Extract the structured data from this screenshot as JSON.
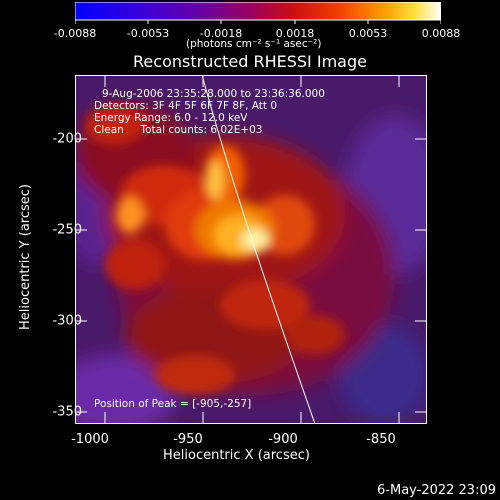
{
  "colorbar": {
    "tick_labels": [
      "-0.0088",
      "-0.0053",
      "-0.0018",
      "0.0018",
      "0.0053",
      "0.0088"
    ],
    "units": "(photons cm⁻² s⁻¹ asec⁻²)"
  },
  "title": "Reconstructed RHESSI Image",
  "annotations": {
    "time": "9-Aug-2006 23:35:28.000 to 23:36:36.000",
    "detectors": "Detectors: 3F 4F 5F 6F 7F 8F, Att 0",
    "energy": "Energy Range: 6.0 - 12.0 keV",
    "clean": "Clean     Total counts: 6.02E+03",
    "peak": "Position of Peak = [-905,-257]"
  },
  "axes": {
    "xlabel": "Heliocentric X (arcsec)",
    "ylabel": "Heliocentric Y (arcsec)",
    "xticks": [
      "-1000",
      "-950",
      "-900",
      "-850"
    ],
    "yticks": [
      "-200",
      "-250",
      "-300",
      "-350"
    ]
  },
  "footer_timestamp": "6-May-2022 23:09"
}
